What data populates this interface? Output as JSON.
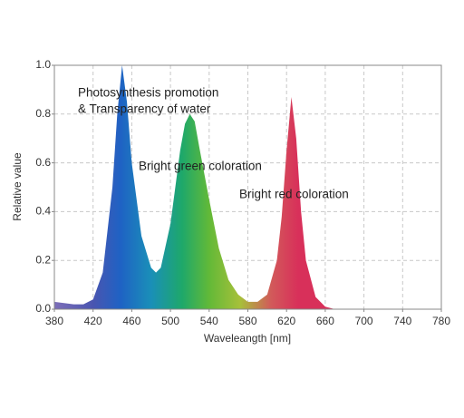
{
  "chart_data": {
    "type": "area",
    "x_label": "Waveleangth [nm]",
    "y_label": "Relative value",
    "annotations": [
      "Photosynthesis promotion",
      "& Transparency of water",
      "Bright green coloration",
      "Bright red coloration"
    ],
    "x": [
      380,
      390,
      400,
      410,
      420,
      430,
      440,
      445,
      450,
      455,
      460,
      470,
      480,
      485,
      490,
      500,
      510,
      515,
      520,
      525,
      530,
      540,
      550,
      560,
      570,
      580,
      590,
      600,
      610,
      615,
      620,
      625,
      630,
      635,
      640,
      650,
      660,
      670,
      680
    ],
    "values": [
      0.03,
      0.025,
      0.02,
      0.02,
      0.04,
      0.15,
      0.5,
      0.8,
      1.0,
      0.85,
      0.6,
      0.3,
      0.17,
      0.15,
      0.17,
      0.35,
      0.65,
      0.76,
      0.8,
      0.77,
      0.66,
      0.45,
      0.25,
      0.12,
      0.06,
      0.03,
      0.03,
      0.06,
      0.2,
      0.38,
      0.65,
      0.87,
      0.7,
      0.4,
      0.2,
      0.05,
      0.01,
      0,
      0
    ],
    "xlim": [
      380,
      780
    ],
    "xticks": [
      380,
      420,
      460,
      500,
      540,
      580,
      620,
      660,
      700,
      740,
      780
    ],
    "ylim": [
      0,
      1
    ],
    "yticks": [
      {
        "value": 0,
        "label": "0.0"
      },
      0.2,
      0.4,
      0.6,
      0.8,
      {
        "value": 1,
        "label": "1.0"
      }
    ],
    "grid": true
  }
}
